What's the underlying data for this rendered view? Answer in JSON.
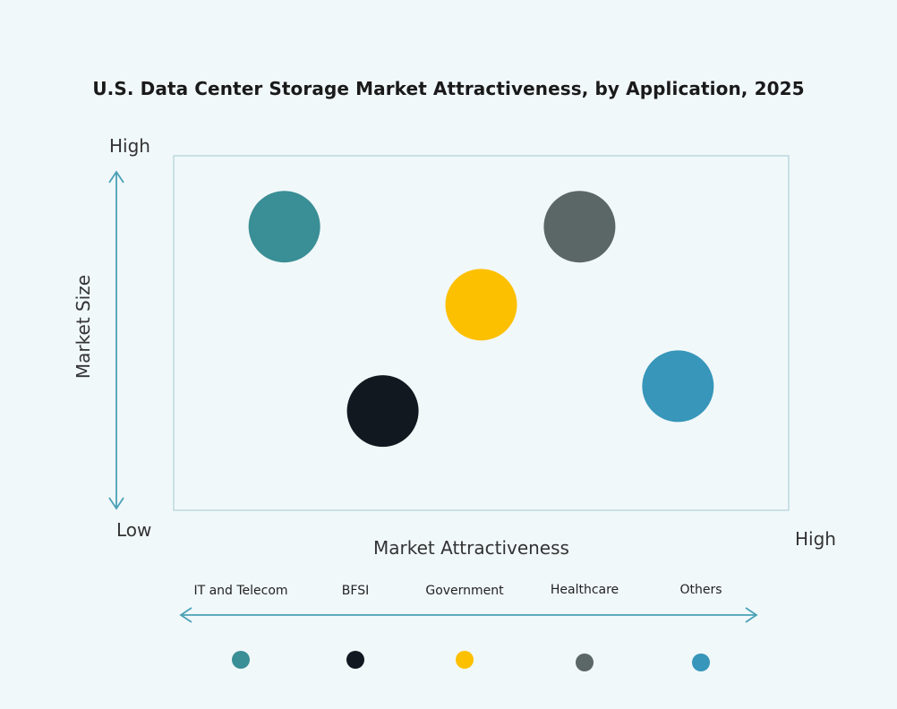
{
  "chart_data": {
    "type": "scatter",
    "title": "U.S. Data Center Storage Market Attractiveness,  by Application, 2025",
    "xlabel": "Market Attractiveness",
    "ylabel": "Market Size",
    "x_axis_labels": {
      "low": "Low",
      "high": "High"
    },
    "y_axis_labels": {
      "low": "Low",
      "high": "High"
    },
    "series": [
      {
        "name": "IT and Telecom",
        "x": 0.18,
        "y": 0.8,
        "color": "#3a8e95"
      },
      {
        "name": "BFSI",
        "x": 0.34,
        "y": 0.28,
        "color": "#121820"
      },
      {
        "name": "Government",
        "x": 0.5,
        "y": 0.58,
        "color": "#fcc000"
      },
      {
        "name": "Healthcare",
        "x": 0.66,
        "y": 0.8,
        "color": "#5b6767"
      },
      {
        "name": "Others",
        "x": 0.82,
        "y": 0.35,
        "color": "#3796ba"
      }
    ],
    "grid": false,
    "legend": "bottom"
  },
  "colors": {
    "axis_arrow": "#4aa0b6",
    "plot_border": "#bcd9de"
  }
}
